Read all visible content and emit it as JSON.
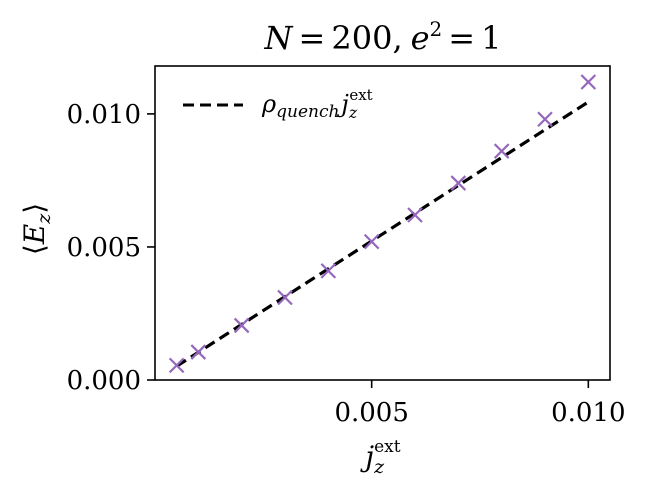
{
  "chart_data": {
    "type": "scatter",
    "title": "N = 200, e² = 1",
    "xlabel": "j_z^ext",
    "ylabel": "⟨E_z⟩",
    "xlim": [
      0.0,
      0.0105
    ],
    "ylim": [
      0.0,
      0.0118
    ],
    "xticks": [
      0.005,
      0.01
    ],
    "xtick_labels": [
      "0.005",
      "0.010"
    ],
    "yticks": [
      0.0,
      0.005,
      0.01
    ],
    "ytick_labels": [
      "0.000",
      "0.005",
      "0.010"
    ],
    "grid": false,
    "legend_position": "top-left",
    "series": [
      {
        "name": "",
        "kind": "scatter",
        "marker": "x",
        "color": "#9467bd",
        "x": [
          0.0005,
          0.001,
          0.002,
          0.003,
          0.004,
          0.005,
          0.006,
          0.007,
          0.008,
          0.009,
          0.01
        ],
        "y": [
          0.00055,
          0.00105,
          0.00205,
          0.0031,
          0.0041,
          0.0052,
          0.0062,
          0.0074,
          0.0086,
          0.0098,
          0.0112
        ]
      },
      {
        "name": "ρ_quench j_z^ext",
        "kind": "line",
        "style": "dashed",
        "color": "#000000",
        "x": [
          0.0005,
          0.01
        ],
        "y": [
          0.00052,
          0.01045
        ]
      }
    ]
  }
}
